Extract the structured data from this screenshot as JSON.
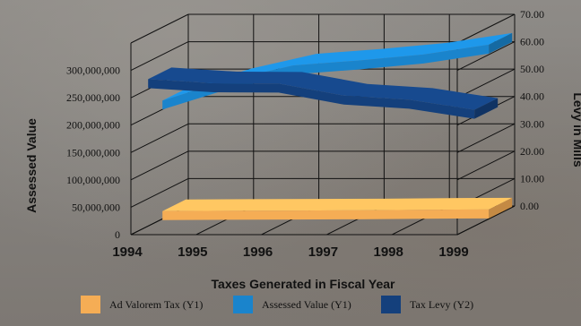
{
  "chart_data": {
    "type": "line",
    "style": "3d-ribbon",
    "x": [
      1994,
      1995,
      1996,
      1997,
      1998,
      1999
    ],
    "x_ticks": [
      "1994",
      "1995",
      "1996",
      "1997",
      "1998",
      "1999"
    ],
    "xlabel": "Taxes Generated in Fiscal Year",
    "ylabel": "Assessed Value",
    "y2label": "Levy in Mills",
    "ylim": [
      0,
      350000000
    ],
    "y2lim": [
      0,
      70
    ],
    "y_ticks": [
      "0",
      "50,000,000",
      "100,000,000",
      "150,000,000",
      "200,000,000",
      "250,000,000",
      "300,000,000"
    ],
    "y2_ticks": [
      "0.00",
      "10.00",
      "20.00",
      "30.00",
      "40.00",
      "50.00",
      "60.00",
      "70.00"
    ],
    "grid": true,
    "legend_position": "bottom",
    "series": [
      {
        "name": "Ad Valorem Tax (Y1)",
        "axis": "y1",
        "color": "#f5ad55",
        "values": [
          6000000,
          6500000,
          7000000,
          7500000,
          8500000,
          9000000
        ]
      },
      {
        "name": "Assessed Value (Y1)",
        "axis": "y1",
        "color": "#1a84cc",
        "values": [
          208000000,
          245000000,
          272000000,
          281000000,
          292000000,
          310000000
        ]
      },
      {
        "name": "Tax Levy (Y2)",
        "axis": "y2",
        "color": "#14407c",
        "values": [
          52.0,
          50.5,
          50.4,
          46.0,
          44.5,
          40.8
        ]
      }
    ]
  }
}
